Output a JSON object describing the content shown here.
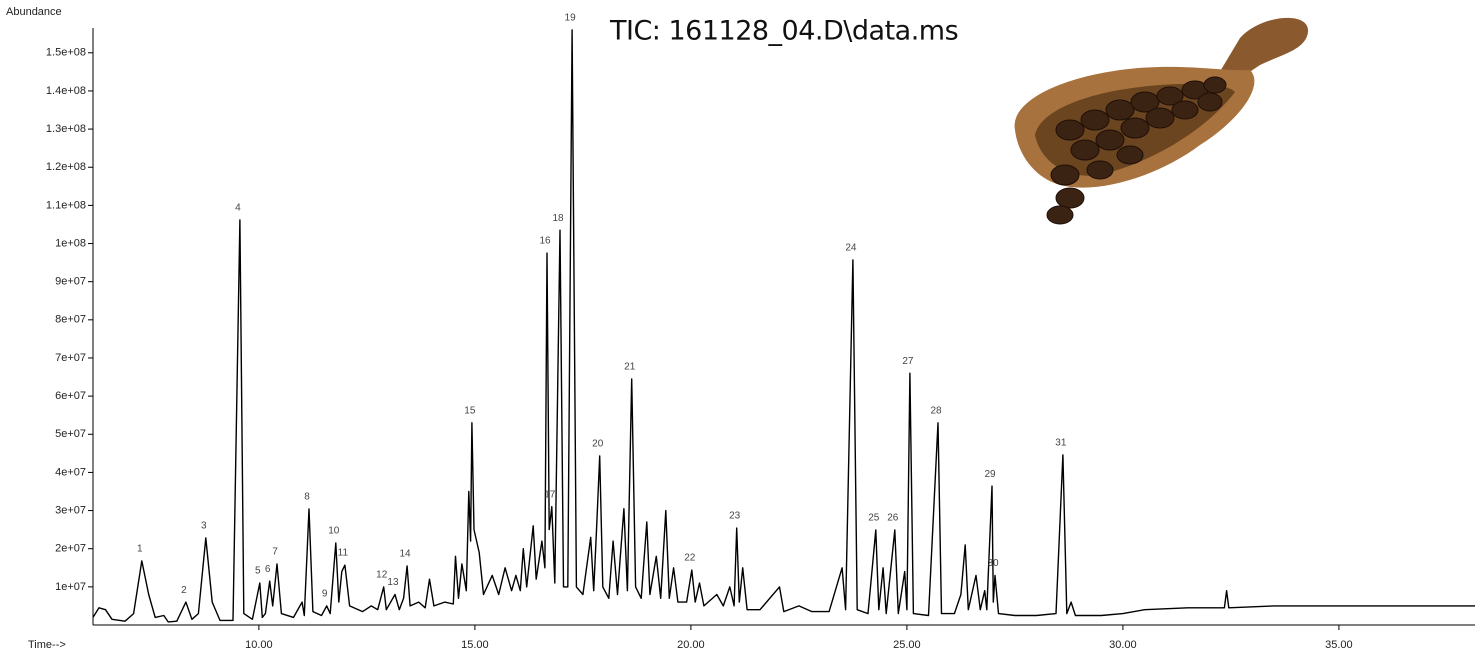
{
  "chart_data": {
    "type": "line",
    "title": "TIC: 161128_04.D\\data.ms",
    "y_label": "Abundance",
    "x_label": "Time-->",
    "color": "#000000",
    "xlim": [
      6.16,
      38.15
    ],
    "ylim": [
      0,
      156500000.0
    ],
    "xticks": [
      {
        "value": 10,
        "label": "10.00"
      },
      {
        "value": 15,
        "label": "15.00"
      },
      {
        "value": 20,
        "label": "20.00"
      },
      {
        "value": 25,
        "label": "25.00"
      },
      {
        "value": 30,
        "label": "30.00"
      },
      {
        "value": 35,
        "label": "35.00"
      }
    ],
    "yticks": [
      {
        "value": 10000000.0,
        "label": "1e+07"
      },
      {
        "value": 20000000.0,
        "label": "2e+07"
      },
      {
        "value": 30000000.0,
        "label": "3e+07"
      },
      {
        "value": 40000000.0,
        "label": "4e+07"
      },
      {
        "value": 50000000.0,
        "label": "5e+07"
      },
      {
        "value": 60000000.0,
        "label": "6e+07"
      },
      {
        "value": 70000000.0,
        "label": "7e+07"
      },
      {
        "value": 80000000.0,
        "label": "8e+07"
      },
      {
        "value": 90000000.0,
        "label": "9e+07"
      },
      {
        "value": 100000000.0,
        "label": "1e+08"
      },
      {
        "value": 110000000.0,
        "label": "1.1e+08"
      },
      {
        "value": 120000000.0,
        "label": "1.2e+08"
      },
      {
        "value": 130000000.0,
        "label": "1.3e+08"
      },
      {
        "value": 140000000.0,
        "label": "1.4e+08"
      },
      {
        "value": 150000000.0,
        "label": "1.5e+08"
      }
    ],
    "x": [
      6.16,
      6.3,
      6.45,
      6.6,
      6.9,
      7.1,
      7.29,
      7.45,
      7.6,
      7.8,
      7.9,
      8.1,
      8.31,
      8.45,
      8.6,
      8.77,
      8.92,
      9.1,
      9.4,
      9.56,
      9.65,
      9.85,
      10.02,
      10.08,
      10.15,
      10.25,
      10.32,
      10.42,
      10.52,
      10.8,
      11.0,
      11.05,
      11.16,
      11.25,
      11.45,
      11.57,
      11.65,
      11.78,
      11.85,
      11.92,
      11.99,
      12.1,
      12.4,
      12.6,
      12.75,
      12.89,
      12.95,
      13.15,
      13.25,
      13.35,
      13.43,
      13.5,
      13.7,
      13.85,
      13.95,
      14.05,
      14.3,
      14.5,
      14.55,
      14.62,
      14.7,
      14.8,
      14.86,
      14.9,
      14.93,
      14.98,
      15.1,
      15.2,
      15.4,
      15.55,
      15.7,
      15.85,
      15.95,
      16.05,
      16.12,
      16.2,
      16.35,
      16.42,
      16.55,
      16.62,
      16.67,
      16.72,
      16.78,
      16.85,
      16.97,
      17.05,
      17.15,
      17.25,
      17.35,
      17.5,
      17.68,
      17.75,
      17.82,
      17.89,
      17.96,
      18.1,
      18.2,
      18.3,
      18.45,
      18.53,
      18.63,
      18.72,
      18.85,
      18.98,
      19.05,
      19.2,
      19.3,
      19.42,
      19.5,
      19.6,
      19.7,
      19.9,
      20.02,
      20.1,
      20.2,
      20.3,
      20.6,
      20.75,
      20.9,
      21.0,
      21.06,
      21.12,
      21.2,
      21.3,
      21.6,
      22.05,
      22.15,
      22.5,
      22.8,
      23.2,
      23.5,
      23.58,
      23.75,
      23.85,
      24.1,
      24.28,
      24.35,
      24.45,
      24.52,
      24.72,
      24.8,
      24.95,
      25.0,
      25.07,
      25.15,
      25.5,
      25.72,
      25.8,
      26.1,
      26.25,
      26.35,
      26.42,
      26.6,
      26.7,
      26.8,
      26.85,
      26.97,
      27.0,
      27.04,
      27.12,
      27.5,
      28.0,
      28.45,
      28.61,
      28.7,
      28.8,
      28.9,
      29.5,
      30.0,
      30.5,
      31.5,
      32.35,
      32.4,
      32.45,
      33.5,
      35.0,
      36.5,
      38.15
    ],
    "values": [
      2000000.0,
      4500000.0,
      4000000.0,
      1500000.0,
      1000000.0,
      3000000.0,
      16800000.0,
      8000000.0,
      2000000.0,
      2500000.0,
      800000.0,
      1000000.0,
      6000000.0,
      1500000.0,
      3000000.0,
      22800000.0,
      6000000.0,
      1200000.0,
      1200000.0,
      106200000.0,
      3000000.0,
      1500000.0,
      11000000.0,
      2000000.0,
      3000000.0,
      11500000.0,
      5000000.0,
      16000000.0,
      3000000.0,
      2000000.0,
      6000000.0,
      2500000.0,
      30400000.0,
      3500000.0,
      2500000.0,
      5000000.0,
      3000000.0,
      21500000.0,
      6000000.0,
      14000000.0,
      15700000.0,
      5000000.0,
      3500000.0,
      5000000.0,
      4000000.0,
      10000000.0,
      4000000.0,
      8000000.0,
      4000000.0,
      7000000.0,
      15500000.0,
      5000000.0,
      6000000.0,
      4500000.0,
      12000000.0,
      5000000.0,
      6000000.0,
      5500000.0,
      18000000.0,
      7000000.0,
      16000000.0,
      9000000.0,
      35000000.0,
      22000000.0,
      53000000.0,
      25000000.0,
      19000000.0,
      8000000.0,
      13000000.0,
      8000000.0,
      15000000.0,
      9000000.0,
      13000000.0,
      9000000.0,
      20000000.0,
      10000000.0,
      26000000.0,
      12000000.0,
      22000000.0,
      15000000.0,
      97500000.0,
      25000000.0,
      31000000.0,
      11000000.0,
      103500000.0,
      10000000.0,
      10000000.0,
      156000000.0,
      10000000.0,
      8000000.0,
      23000000.0,
      9000000.0,
      26000000.0,
      44300000.0,
      10000000.0,
      7000000.0,
      22000000.0,
      8000000.0,
      30500000.0,
      9000000.0,
      64500000.0,
      10000000.0,
      7000000.0,
      27000000.0,
      8000000.0,
      18000000.0,
      7000000.0,
      30000000.0,
      7000000.0,
      15000000.0,
      6000000.0,
      6000000.0,
      14400000.0,
      6000000.0,
      11000000.0,
      5000000.0,
      8000000.0,
      5000000.0,
      10000000.0,
      5000000.0,
      25400000.0,
      6000000.0,
      15000000.0,
      4000000.0,
      4000000.0,
      10000000.0,
      3500000.0,
      5000000.0,
      3500000.0,
      3500000.0,
      15000000.0,
      4000000.0,
      95700000.0,
      4000000.0,
      3000000.0,
      24900000.0,
      4000000.0,
      15000000.0,
      3000000.0,
      24900000.0,
      3000000.0,
      14000000.0,
      4000000.0,
      66000000.0,
      3000000.0,
      2500000.0,
      53000000.0,
      3000000.0,
      3000000.0,
      8000000.0,
      21000000.0,
      4000000.0,
      13000000.0,
      4000000.0,
      9000000.0,
      4000000.0,
      36400000.0,
      6000000.0,
      13000000.0,
      3000000.0,
      2500000.0,
      2500000.0,
      3000000.0,
      44600000.0,
      3000000.0,
      6000000.0,
      2500000.0,
      2500000.0,
      3000000.0,
      4000000.0,
      4500000.0,
      4500000.0,
      9000000.0,
      4500000.0,
      5000000.0,
      5000000.0,
      5000000.0,
      5000000.0
    ],
    "annotations": [
      {
        "label": "1",
        "x": 7.29,
        "y": 16800000.0
      },
      {
        "label": "2",
        "x": 8.31,
        "y": 6000000.0
      },
      {
        "label": "3",
        "x": 8.77,
        "y": 22800000.0
      },
      {
        "label": "4",
        "x": 9.56,
        "y": 106200000.0
      },
      {
        "label": "5",
        "x": 10.02,
        "y": 11000000.0
      },
      {
        "label": "6",
        "x": 10.25,
        "y": 11500000.0
      },
      {
        "label": "7",
        "x": 10.42,
        "y": 16000000.0
      },
      {
        "label": "8",
        "x": 11.16,
        "y": 30400000.0
      },
      {
        "label": "9",
        "x": 11.57,
        "y": 5000000.0
      },
      {
        "label": "10",
        "x": 11.78,
        "y": 21500000.0
      },
      {
        "label": "11",
        "x": 11.99,
        "y": 15700000.0
      },
      {
        "label": "12",
        "x": 12.89,
        "y": 10000000.0
      },
      {
        "label": "13",
        "x": 13.15,
        "y": 8000000.0
      },
      {
        "label": "14",
        "x": 13.43,
        "y": 15500000.0
      },
      {
        "label": "15",
        "x": 14.93,
        "y": 53000000.0
      },
      {
        "label": "16",
        "x": 16.67,
        "y": 97500000.0
      },
      {
        "label": "17",
        "x": 16.78,
        "y": 31000000.0
      },
      {
        "label": "18",
        "x": 16.97,
        "y": 103500000.0
      },
      {
        "label": "19",
        "x": 17.25,
        "y": 156000000.0
      },
      {
        "label": "20",
        "x": 17.89,
        "y": 44300000.0
      },
      {
        "label": "21",
        "x": 18.63,
        "y": 64500000.0
      },
      {
        "label": "22",
        "x": 20.02,
        "y": 14400000.0
      },
      {
        "label": "23",
        "x": 21.06,
        "y": 25400000.0
      },
      {
        "label": "24",
        "x": 23.75,
        "y": 95700000.0
      },
      {
        "label": "25",
        "x": 24.28,
        "y": 24900000.0
      },
      {
        "label": "26",
        "x": 24.72,
        "y": 24900000.0
      },
      {
        "label": "27",
        "x": 25.07,
        "y": 66000000.0
      },
      {
        "label": "28",
        "x": 25.72,
        "y": 53000000.0
      },
      {
        "label": "29",
        "x": 26.97,
        "y": 36400000.0
      },
      {
        "label": "30",
        "x": 27.04,
        "y": 13000000.0
      },
      {
        "label": "31",
        "x": 28.61,
        "y": 44600000.0
      }
    ]
  }
}
